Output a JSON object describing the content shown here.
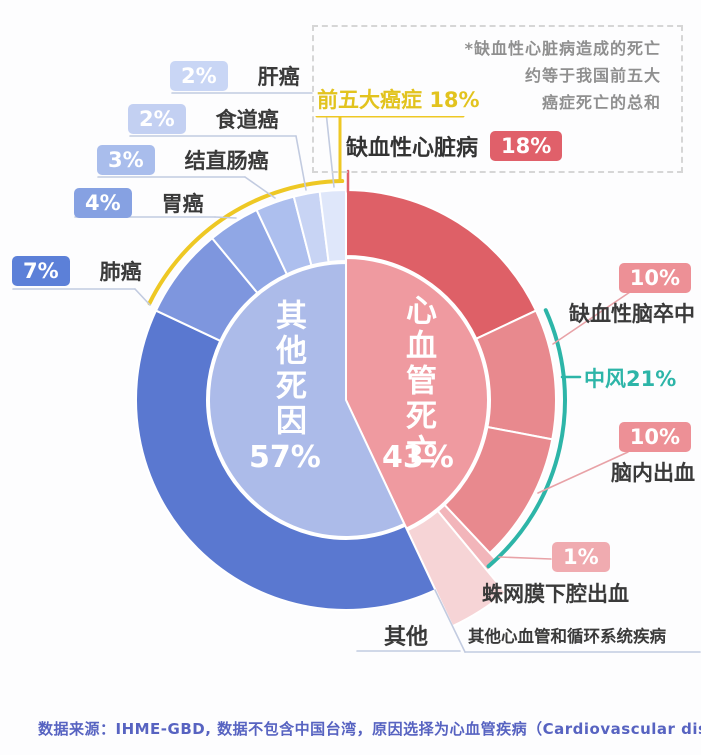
{
  "note_box": {
    "lines": [
      "*缺血性心脏病造成的死亡",
      "约等于我国前五大",
      "癌症死亡的总和"
    ]
  },
  "callouts": {
    "top_cancers": {
      "label": "前五大癌症",
      "pct": "18%"
    },
    "ihd": {
      "label": "缺血性心脏病",
      "pct": "18%"
    },
    "liver": {
      "label": "肝癌",
      "pct": "2%"
    },
    "esophageal": {
      "label": "食道癌",
      "pct": "2%"
    },
    "colorectal": {
      "label": "结直肠癌",
      "pct": "3%"
    },
    "stomach": {
      "label": "胃癌",
      "pct": "4%"
    },
    "lung": {
      "label": "肺癌",
      "pct": "7%"
    },
    "ischemic_stroke": {
      "label": "缺血性脑卒中",
      "pct": "10%"
    },
    "stroke_total": {
      "label": "中风21%"
    },
    "ich": {
      "label": "脑内出血",
      "pct": "10%"
    },
    "sah": {
      "label": "蛛网膜下腔出血",
      "pct": "1%"
    },
    "other_cvd": {
      "label": "其他心血管和循环系统疾病"
    },
    "other": {
      "label": "其他"
    }
  },
  "center": {
    "left_label": "其他死因",
    "left_pct": "57%",
    "right_label": "心血管死亡",
    "right_pct": "43%"
  },
  "source": "数据来源：IHME-GBD, 数据不包含中国台湾，原因选择为心血管疾病（Cardiovascular diseases）",
  "colors": {
    "accent_yellow": "#eec824",
    "yellow_text": "#e2c31e",
    "accent_teal": "#2db5a8",
    "cvd_red": "#de6067",
    "stroke_pink": "#e8898e",
    "sah_pink": "#f2b5ba",
    "other_cvd_pink": "#f6d4d6",
    "inner_pink": "#ef9aa0",
    "inner_blue": "#acbbe9",
    "other_blue": "#5a78d0",
    "lung_blue": "#7e96de",
    "stomach_blue": "#90a7e5",
    "colorectal_blue": "#adbfee",
    "esophageal_blue": "#c8d4f4",
    "liver_blue": "#dfe7fa",
    "source_text": "#5763c1",
    "label_dark": "#3a3a3a",
    "note_gray": "#8f8f8f"
  },
  "chart_data": {
    "type": "pie",
    "title": "",
    "units": "%",
    "start_angle_deg": 0,
    "clockwise": true,
    "inner_ring": [
      {
        "key": "cvd_deaths",
        "label": "心血管死亡",
        "value": 43,
        "color": "#ef9aa0"
      },
      {
        "key": "other_deaths",
        "label": "其他死因",
        "value": 57,
        "color": "#acbbe9"
      }
    ],
    "outer_ring": [
      {
        "key": "ihd",
        "label": "缺血性心脏病",
        "value": 18,
        "color": "#de6067"
      },
      {
        "key": "ischemic_stroke",
        "label": "缺血性脑卒中",
        "value": 10,
        "color": "#e8898e"
      },
      {
        "key": "ich",
        "label": "脑内出血",
        "value": 10,
        "color": "#e8898e"
      },
      {
        "key": "sah",
        "label": "蛛网膜下腔出血",
        "value": 1,
        "color": "#f2b5ba"
      },
      {
        "key": "other_cvd",
        "label": "其他心血管和循环系统疾病",
        "value": 4,
        "color": "#f6d4d6"
      },
      {
        "key": "other_causes",
        "label": "其他",
        "value": 39,
        "color": "#5a78d0"
      },
      {
        "key": "lung",
        "label": "肺癌",
        "value": 7,
        "color": "#7e96de"
      },
      {
        "key": "stomach",
        "label": "胃癌",
        "value": 4,
        "color": "#90a7e5"
      },
      {
        "key": "colorectal",
        "label": "结直肠癌",
        "value": 3,
        "color": "#adbfee"
      },
      {
        "key": "esophageal",
        "label": "食道癌",
        "value": 2,
        "color": "#c8d4f4"
      },
      {
        "key": "liver",
        "label": "肝癌",
        "value": 2,
        "color": "#dfe7fa"
      }
    ],
    "brackets": [
      {
        "key": "stroke_total",
        "label": "中风21%",
        "value": 21,
        "color": "#2db5a8",
        "covers": [
          "ischemic_stroke",
          "ich",
          "sah"
        ]
      },
      {
        "key": "top5_cancers",
        "label": "前五大癌症 18%",
        "value": 18,
        "color": "#eec824",
        "covers": [
          "lung",
          "stomach",
          "colorectal",
          "esophageal",
          "liver"
        ]
      }
    ]
  }
}
